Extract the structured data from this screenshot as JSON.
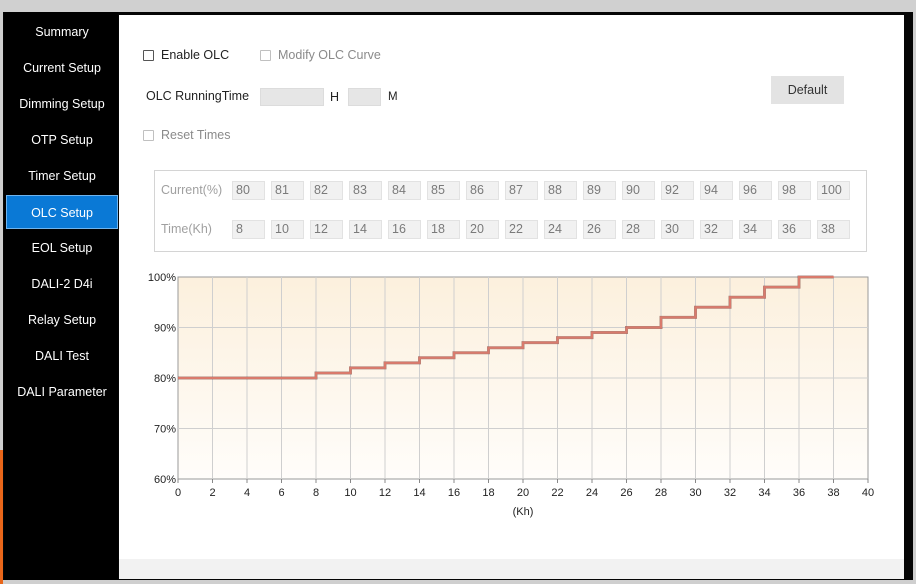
{
  "sidebar": {
    "items": [
      {
        "label": "Summary",
        "active": false
      },
      {
        "label": "Current Setup",
        "active": false
      },
      {
        "label": "Dimming Setup",
        "active": false
      },
      {
        "label": "OTP Setup",
        "active": false
      },
      {
        "label": "Timer Setup",
        "active": false
      },
      {
        "label": "OLC Setup",
        "active": true
      },
      {
        "label": "EOL Setup",
        "active": false
      },
      {
        "label": "DALI-2 D4i",
        "active": false
      },
      {
        "label": "Relay Setup",
        "active": false
      },
      {
        "label": "DALI Test",
        "active": false
      },
      {
        "label": "DALI Parameter",
        "active": false
      }
    ],
    "accent_color": "#0a79d6"
  },
  "olc": {
    "enable_label": "Enable OLC",
    "enable_checked": false,
    "modify_label": "Modify OLC Curve",
    "modify_checked": false,
    "running_time_label": "OLC RunningTime",
    "hours_unit": "H",
    "minutes_unit": "M",
    "hours_value": "",
    "minutes_value": "",
    "reset_label": "Reset Times",
    "reset_checked": false,
    "default_button": "Default"
  },
  "table": {
    "current_label": "Current(%)",
    "time_label": "Time(Kh)",
    "current_values": [
      "80",
      "81",
      "82",
      "83",
      "84",
      "85",
      "86",
      "87",
      "88",
      "89",
      "90",
      "92",
      "94",
      "96",
      "98",
      "100"
    ],
    "time_values": [
      "8",
      "10",
      "12",
      "14",
      "16",
      "18",
      "20",
      "22",
      "24",
      "26",
      "28",
      "30",
      "32",
      "34",
      "36",
      "38"
    ]
  },
  "chart_data": {
    "type": "line",
    "step": true,
    "title": "",
    "xlabel": "(Kh)",
    "ylabel": "",
    "xlim": [
      0,
      40
    ],
    "ylim": [
      60,
      100
    ],
    "x_ticks": [
      "0",
      "2",
      "4",
      "6",
      "8",
      "10",
      "12",
      "14",
      "16",
      "18",
      "20",
      "22",
      "24",
      "26",
      "28",
      "30",
      "32",
      "34",
      "36",
      "38",
      "40"
    ],
    "y_ticks": [
      "60%",
      "70%",
      "80%",
      "90%",
      "100%"
    ],
    "grid": true,
    "series": [
      {
        "x": [
          0,
          8,
          10,
          12,
          14,
          16,
          18,
          20,
          22,
          24,
          26,
          28,
          30,
          32,
          34,
          36,
          38
        ],
        "y": [
          80,
          81,
          82,
          83,
          84,
          85,
          86,
          87,
          88,
          89,
          90,
          92,
          94,
          96,
          98,
          100,
          100
        ],
        "color": "#d97a6c"
      }
    ]
  }
}
